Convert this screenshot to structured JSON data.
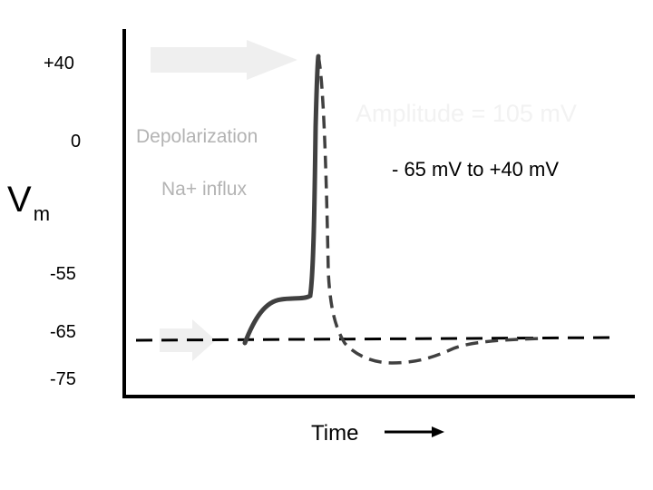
{
  "axis": {
    "y_title": "V",
    "y_title_sub": "m",
    "x_title": "Time",
    "y_ticks": [
      "+40",
      "0",
      "-55",
      "-65",
      "-75"
    ]
  },
  "annotations": {
    "depolarization": "Depolarization",
    "na_influx": "Na+ influx",
    "amplitude": "Amplitude = 105 mV",
    "range": "- 65 mV to +40 mV"
  },
  "colors": {
    "axis": "#000000",
    "trace": "#404040",
    "baseline": "#000000",
    "pointer_arrow": "#efefef",
    "faint_text": "#b3b3b3"
  },
  "icons": {
    "peak_pointer": "right-arrow-icon",
    "resting_pointer": "right-arrow-icon",
    "time_direction": "long-right-arrow-icon"
  }
}
